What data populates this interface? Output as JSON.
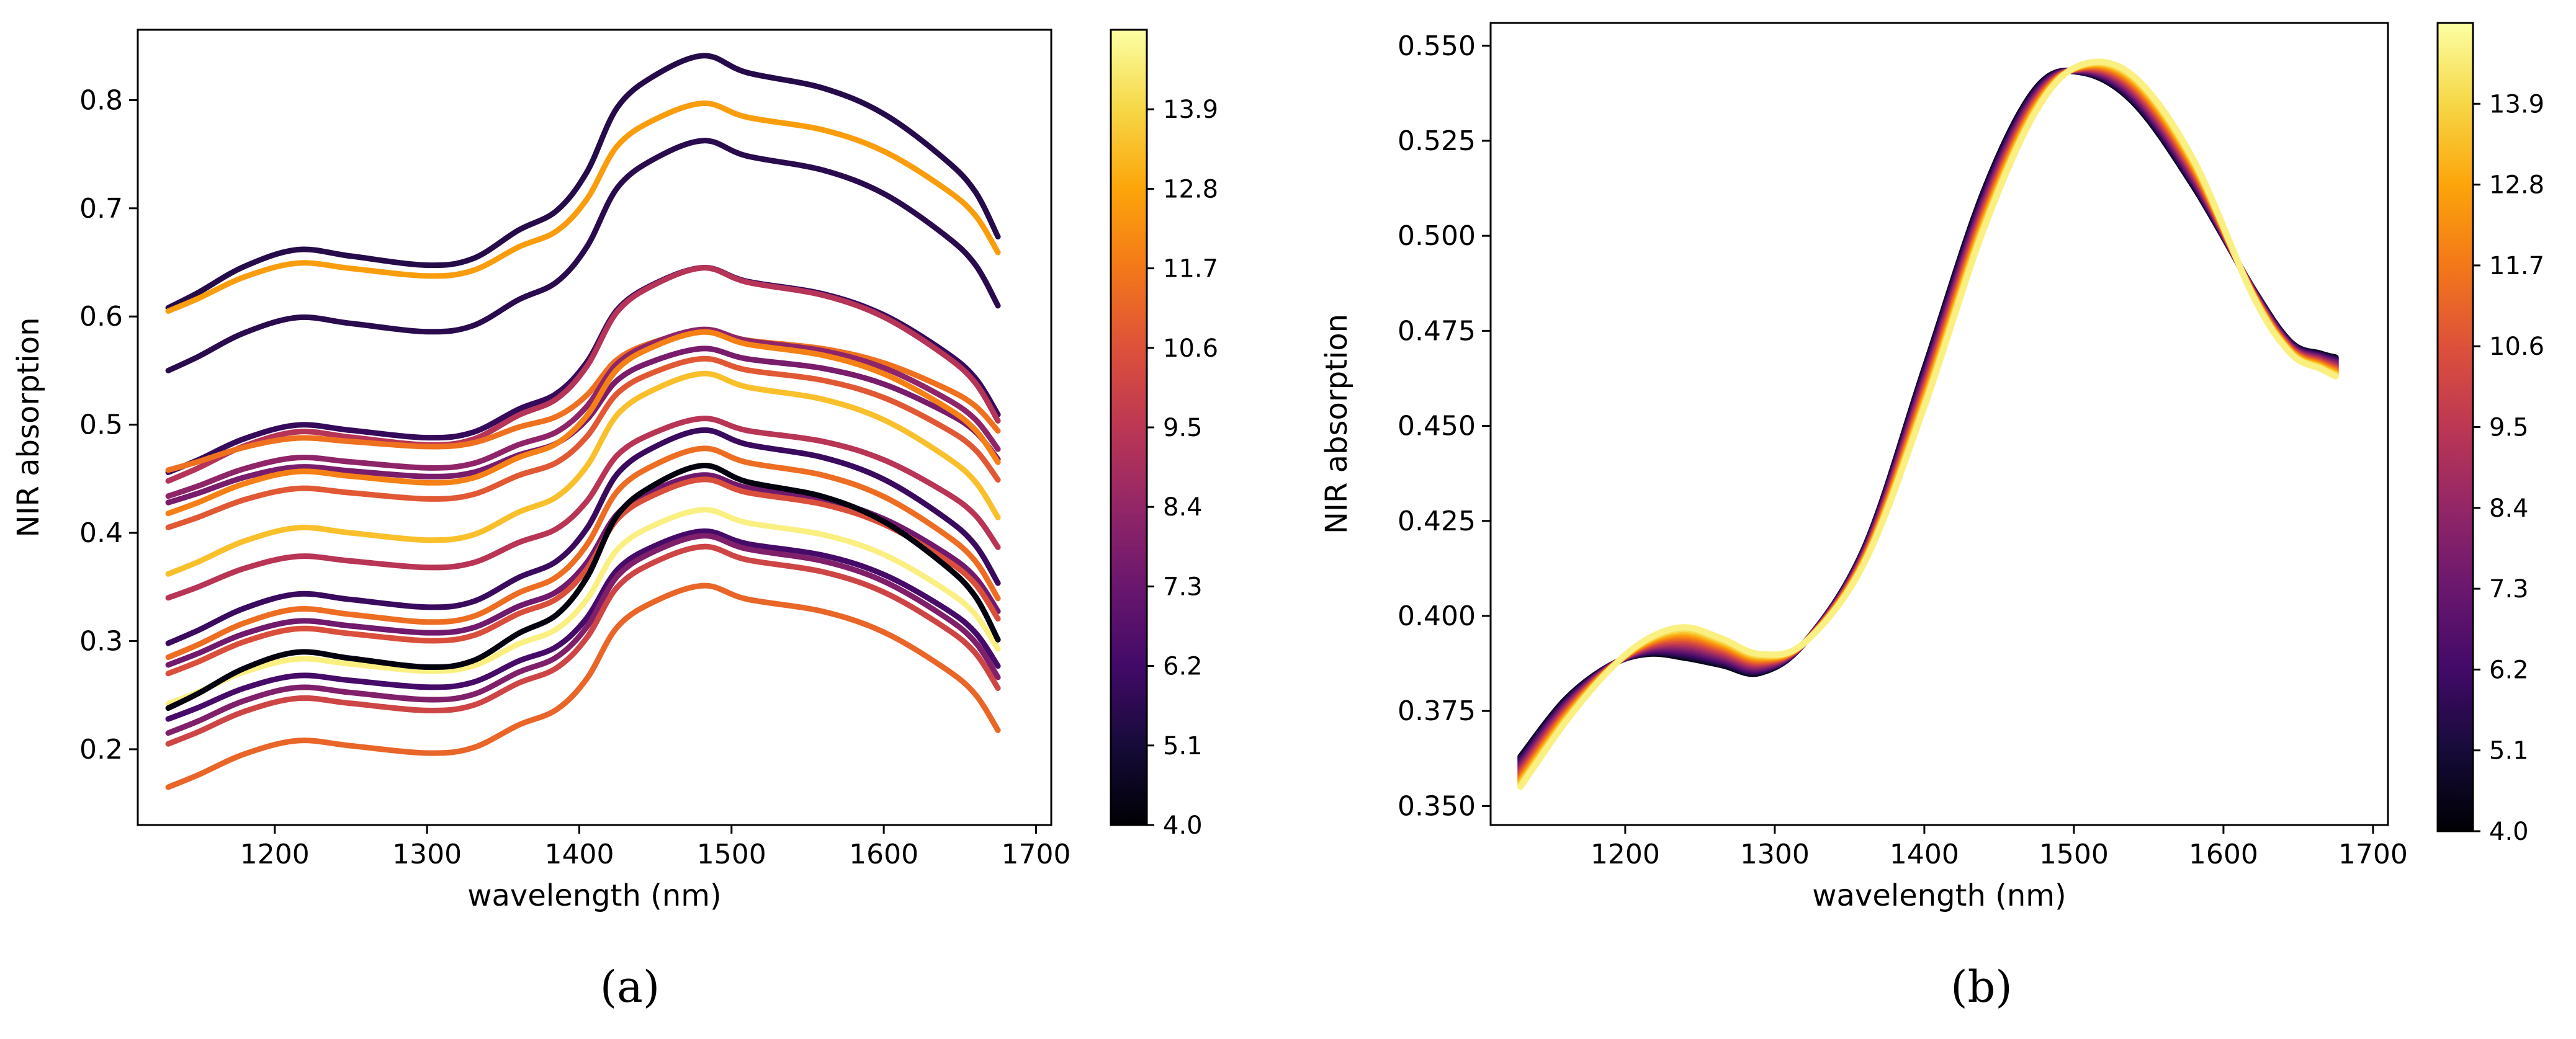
{
  "figure": {
    "captions": [
      "(a)",
      "(b)"
    ]
  },
  "chart_data": [
    {
      "type": "line",
      "panel": "a",
      "xlabel": "wavelength (nm)",
      "ylabel": "NIR absorption",
      "xlim": [
        1110,
        1710
      ],
      "ylim": [
        0.13,
        0.865
      ],
      "xticks": [
        1200,
        1300,
        1400,
        1500,
        1600,
        1700
      ],
      "yticks": [
        0.2,
        0.3,
        0.4,
        0.5,
        0.6,
        0.7,
        0.8
      ],
      "ytick_labels": [
        "0.2",
        "0.3",
        "0.4",
        "0.5",
        "0.6",
        "0.7",
        "0.8"
      ],
      "grid": false,
      "colormap": "inferno",
      "colorbar": {
        "range": [
          4.0,
          15.0
        ],
        "ticks": [
          4.0,
          5.1,
          6.2,
          7.3,
          8.4,
          9.5,
          10.6,
          11.7,
          12.8,
          13.9
        ],
        "tick_labels": [
          "4.0",
          "5.1",
          "6.2",
          "7.3",
          "8.4",
          "9.5",
          "10.6",
          "11.7",
          "12.8",
          "13.9"
        ]
      },
      "x": [
        1130,
        1150,
        1180,
        1215,
        1250,
        1300,
        1330,
        1360,
        1385,
        1405,
        1425,
        1450,
        1482,
        1510,
        1560,
        1600,
        1640,
        1660,
        1675
      ],
      "shape": [
        0,
        0.12,
        0.32,
        0.45,
        0.4,
        0.33,
        0.38,
        0.6,
        0.75,
        1.05,
        1.55,
        1.8,
        1.95,
        1.82,
        1.7,
        1.5,
        1.15,
        0.9,
        0.55
      ],
      "series": [
        {
          "value": 5.5,
          "base": 0.608,
          "amplitude": 0.1195
        },
        {
          "value": 12.6,
          "base": 0.605,
          "amplitude": 0.0985
        },
        {
          "value": 5.6,
          "base": 0.55,
          "amplitude": 0.109
        },
        {
          "value": 5.9,
          "base": 0.456,
          "amplitude": 0.097
        },
        {
          "value": 9.3,
          "base": 0.448,
          "amplitude": 0.101
        },
        {
          "value": 11.5,
          "base": 0.458,
          "amplitude": 0.066
        },
        {
          "value": 8.3,
          "base": 0.434,
          "amplitude": 0.079
        },
        {
          "value": 7.7,
          "base": 0.428,
          "amplitude": 0.073
        },
        {
          "value": 11.9,
          "base": 0.418,
          "amplitude": 0.086
        },
        {
          "value": 10.8,
          "base": 0.405,
          "amplitude": 0.08
        },
        {
          "value": 13.4,
          "base": 0.362,
          "amplitude": 0.095
        },
        {
          "value": 9.4,
          "base": 0.34,
          "amplitude": 0.085
        },
        {
          "value": 6.0,
          "base": 0.298,
          "amplitude": 0.101
        },
        {
          "value": 11.4,
          "base": 0.285,
          "amplitude": 0.099
        },
        {
          "value": 7.5,
          "base": 0.278,
          "amplitude": 0.09
        },
        {
          "value": 10.5,
          "base": 0.27,
          "amplitude": 0.092
        },
        {
          "value": 14.6,
          "base": 0.242,
          "amplitude": 0.092
        },
        {
          "value": 4.2,
          "base": 0.238,
          "amplitude": 0.115
        },
        {
          "value": 6.3,
          "base": 0.228,
          "amplitude": 0.089
        },
        {
          "value": 7.9,
          "base": 0.215,
          "amplitude": 0.0935
        },
        {
          "value": 10.1,
          "base": 0.205,
          "amplitude": 0.0935
        },
        {
          "value": 11.2,
          "base": 0.165,
          "amplitude": 0.0955
        }
      ]
    },
    {
      "type": "line",
      "panel": "b",
      "xlabel": "wavelength (nm)",
      "ylabel": "NIR absorption",
      "xlim": [
        1110,
        1710
      ],
      "ylim": [
        0.345,
        0.556
      ],
      "xticks": [
        1200,
        1300,
        1400,
        1500,
        1600,
        1700
      ],
      "yticks": [
        0.35,
        0.375,
        0.4,
        0.425,
        0.45,
        0.475,
        0.5,
        0.525,
        0.55
      ],
      "ytick_labels": [
        "0.350",
        "0.375",
        "0.400",
        "0.425",
        "0.450",
        "0.475",
        "0.500",
        "0.525",
        "0.550"
      ],
      "grid": false,
      "colormap": "inferno",
      "colorbar": {
        "range": [
          4.0,
          15.0
        ],
        "ticks": [
          4.0,
          5.1,
          6.2,
          7.3,
          8.4,
          9.5,
          10.6,
          11.7,
          12.8,
          13.9
        ],
        "tick_labels": [
          "4.0",
          "5.1",
          "6.2",
          "7.3",
          "8.4",
          "9.5",
          "10.6",
          "11.7",
          "12.8",
          "13.9"
        ]
      },
      "x": [
        1130,
        1160,
        1190,
        1215,
        1240,
        1265,
        1290,
        1320,
        1360,
        1400,
        1440,
        1475,
        1505,
        1540,
        1580,
        1620,
        1645,
        1665,
        1675
      ],
      "series_low": [
        0.363,
        0.378,
        0.387,
        0.39,
        0.389,
        0.387,
        0.385,
        0.393,
        0.418,
        0.465,
        0.512,
        0.539,
        0.543,
        0.535,
        0.513,
        0.486,
        0.472,
        0.469,
        0.468
      ],
      "series_high": [
        0.355,
        0.372,
        0.386,
        0.394,
        0.397,
        0.394,
        0.39,
        0.393,
        0.414,
        0.455,
        0.502,
        0.533,
        0.545,
        0.542,
        0.52,
        0.484,
        0.469,
        0.465,
        0.463
      ],
      "series_values": [
        4.4,
        5.0,
        5.6,
        6.1,
        6.6,
        7.1,
        7.6,
        8.1,
        8.6,
        9.1,
        9.6,
        10.1,
        10.6,
        11.1,
        11.6,
        12.1,
        12.6,
        13.1,
        13.6,
        14.1,
        14.6
      ]
    }
  ]
}
